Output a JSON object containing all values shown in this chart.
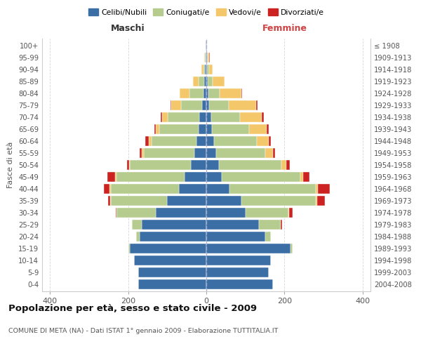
{
  "age_groups": [
    "0-4",
    "5-9",
    "10-14",
    "15-19",
    "20-24",
    "25-29",
    "30-34",
    "35-39",
    "40-44",
    "45-49",
    "50-54",
    "55-59",
    "60-64",
    "65-69",
    "70-74",
    "75-79",
    "80-84",
    "85-89",
    "90-94",
    "95-99",
    "100+"
  ],
  "birth_years": [
    "2004-2008",
    "1999-2003",
    "1994-1998",
    "1989-1993",
    "1984-1988",
    "1979-1983",
    "1974-1978",
    "1969-1973",
    "1964-1968",
    "1959-1963",
    "1954-1958",
    "1949-1953",
    "1944-1948",
    "1939-1943",
    "1934-1938",
    "1929-1933",
    "1924-1928",
    "1919-1923",
    "1914-1918",
    "1909-1913",
    "≤ 1908"
  ],
  "colors": {
    "celibi": "#3a6ea5",
    "coniugati": "#b5cc8e",
    "vedovi": "#f4c86a",
    "divorziati": "#cc2222"
  },
  "males": {
    "celibi": [
      175,
      175,
      185,
      195,
      170,
      165,
      130,
      100,
      70,
      55,
      40,
      30,
      25,
      20,
      18,
      10,
      8,
      5,
      3,
      1,
      1
    ],
    "coniugati": [
      0,
      0,
      0,
      5,
      10,
      25,
      100,
      145,
      175,
      175,
      155,
      130,
      115,
      100,
      80,
      55,
      35,
      15,
      5,
      2,
      0
    ],
    "vedovi": [
      0,
      0,
      0,
      0,
      0,
      0,
      0,
      1,
      2,
      3,
      3,
      5,
      8,
      10,
      15,
      25,
      25,
      15,
      5,
      3,
      0
    ],
    "divorziati": [
      0,
      0,
      0,
      0,
      0,
      0,
      2,
      5,
      15,
      20,
      5,
      5,
      8,
      2,
      3,
      2,
      0,
      0,
      0,
      0,
      0
    ]
  },
  "females": {
    "celibi": [
      170,
      160,
      165,
      215,
      150,
      135,
      100,
      90,
      60,
      40,
      32,
      25,
      20,
      15,
      12,
      8,
      6,
      4,
      2,
      1,
      1
    ],
    "coniugati": [
      0,
      0,
      0,
      5,
      15,
      55,
      110,
      190,
      220,
      200,
      160,
      125,
      110,
      95,
      75,
      50,
      28,
      12,
      5,
      2,
      0
    ],
    "vedovi": [
      0,
      0,
      0,
      0,
      0,
      1,
      2,
      3,
      5,
      8,
      12,
      20,
      30,
      45,
      55,
      70,
      55,
      30,
      10,
      5,
      0
    ],
    "divorziati": [
      0,
      0,
      0,
      0,
      1,
      3,
      8,
      20,
      30,
      15,
      10,
      5,
      5,
      5,
      5,
      3,
      2,
      0,
      0,
      1,
      0
    ]
  },
  "title": "Popolazione per età, sesso e stato civile - 2009",
  "subtitle": "COMUNE DI META (NA) - Dati ISTAT 1° gennaio 2009 - Elaborazione TUTTITALIA.IT",
  "xlabel_left": "Maschi",
  "xlabel_right": "Femmine",
  "ylabel_left": "Fasce di età",
  "xlim": 420,
  "legend_labels": [
    "Celibi/Nubili",
    "Coniugati/e",
    "Vedovi/e",
    "Divorziati/e"
  ]
}
